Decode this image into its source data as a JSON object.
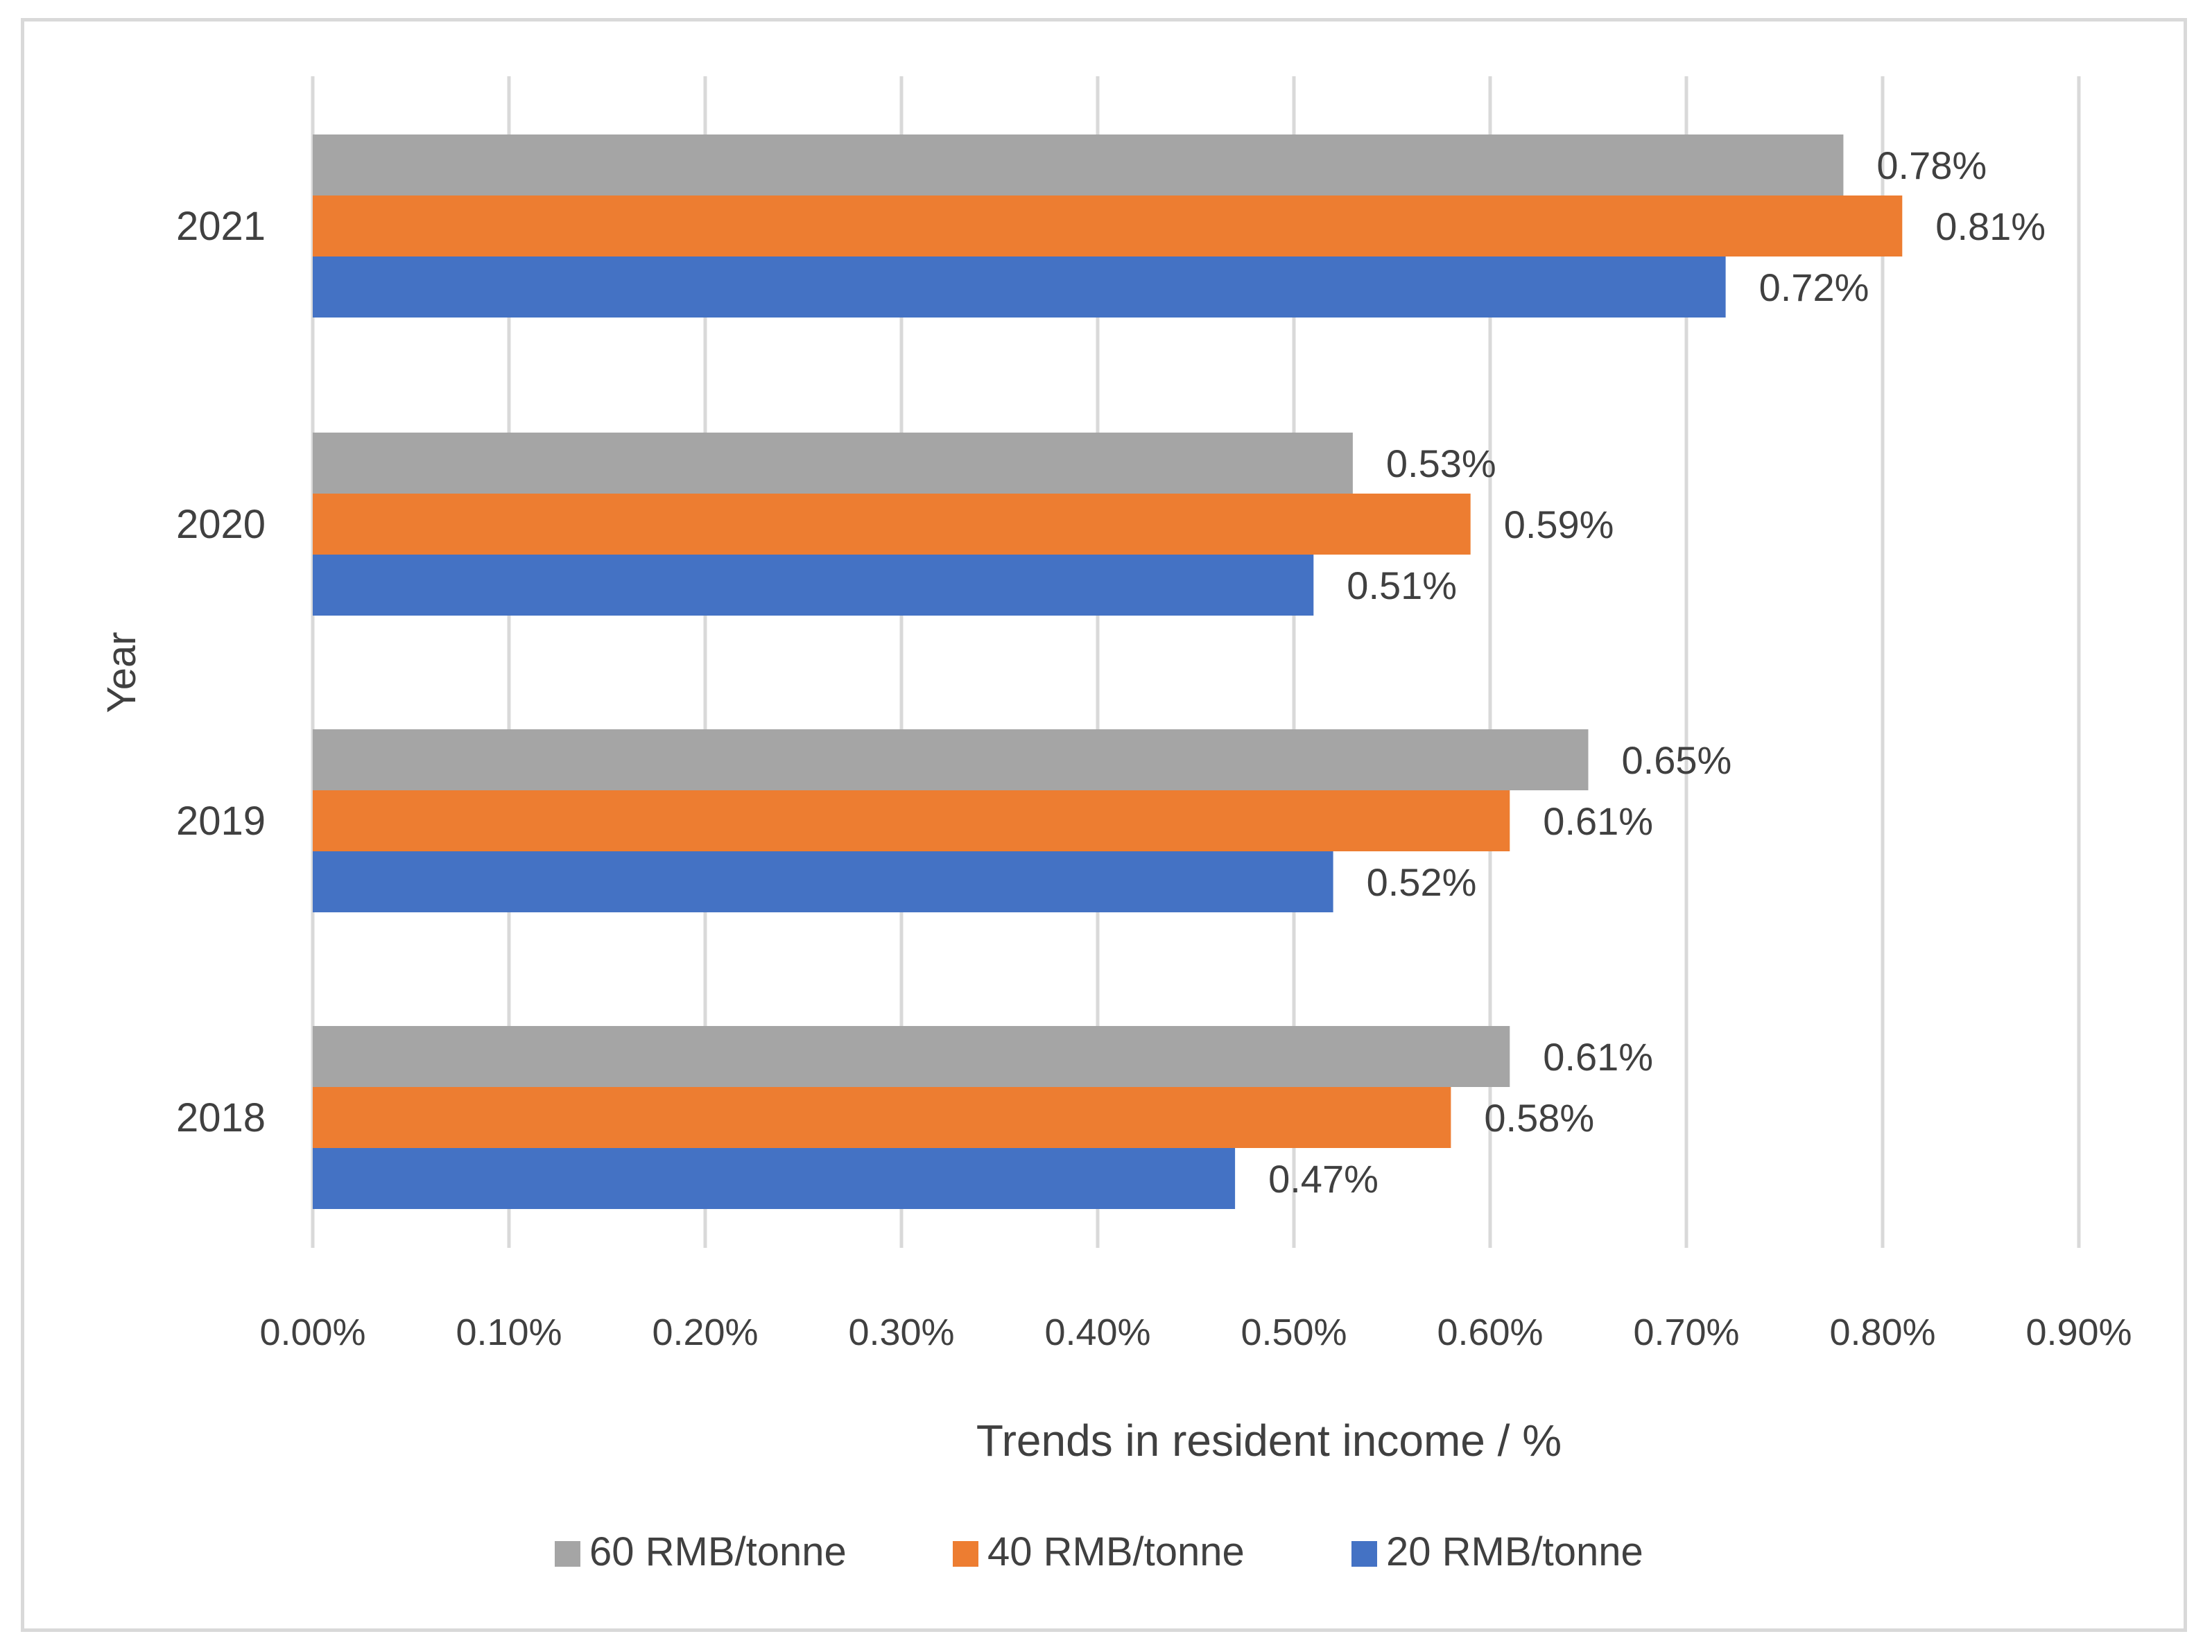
{
  "chart_data": {
    "type": "bar",
    "orientation": "horizontal",
    "title": "",
    "xlabel": "Trends in resident income / %",
    "ylabel": "Year",
    "categories": [
      "2018",
      "2019",
      "2020",
      "2021"
    ],
    "xlim": [
      0,
      0.9
    ],
    "xticks": [
      "0.00%",
      "0.10%",
      "0.20%",
      "0.30%",
      "0.40%",
      "0.50%",
      "0.60%",
      "0.70%",
      "0.80%",
      "0.90%"
    ],
    "grid": true,
    "legend_position": "bottom",
    "series": [
      {
        "name": "60 RMB/tonne",
        "color": "#a5a5a5",
        "values": [
          0.61,
          0.65,
          0.53,
          0.78
        ],
        "labels": [
          "0.61%",
          "0.65%",
          "0.53%",
          "0.78%"
        ]
      },
      {
        "name": "40 RMB/tonne",
        "color": "#ed7d31",
        "values": [
          0.58,
          0.61,
          0.59,
          0.81
        ],
        "labels": [
          "0.58%",
          "0.61%",
          "0.59%",
          "0.81%"
        ]
      },
      {
        "name": "20 RMB/tonne",
        "color": "#4472c4",
        "values": [
          0.47,
          0.52,
          0.51,
          0.72
        ],
        "labels": [
          "0.47%",
          "0.52%",
          "0.51%",
          "0.72%"
        ]
      }
    ]
  }
}
